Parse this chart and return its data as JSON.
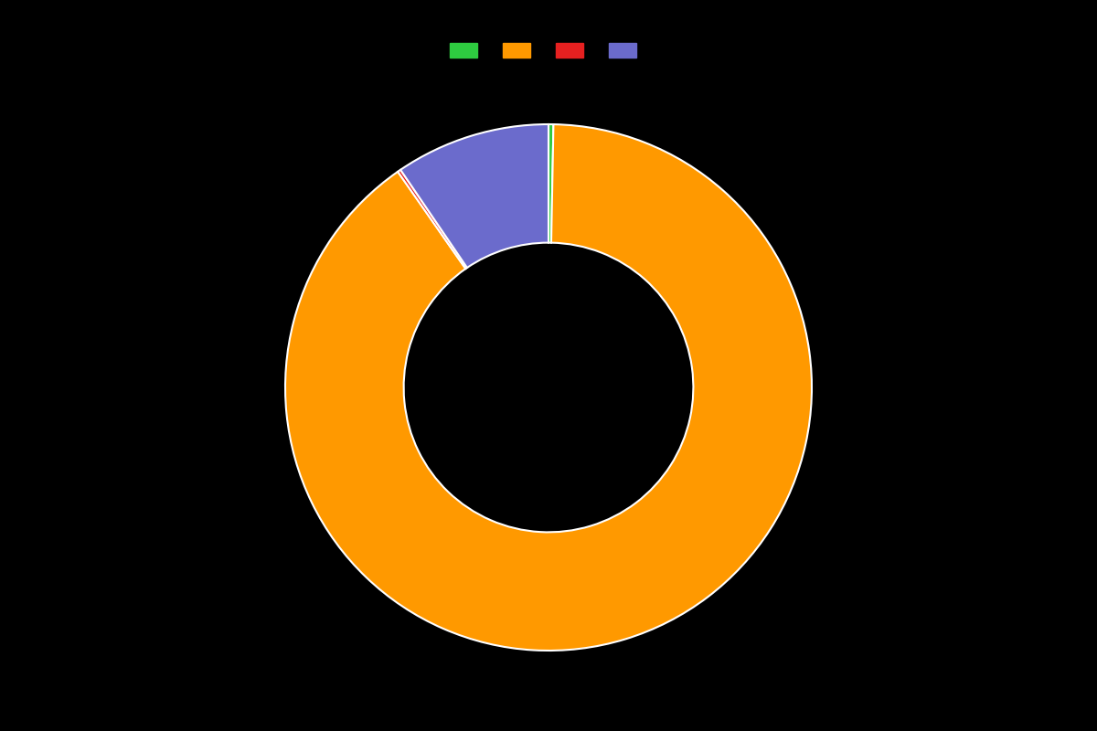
{
  "labels": [
    "",
    "",
    "",
    ""
  ],
  "values": [
    0.3,
    90.0,
    0.2,
    9.5
  ],
  "colors": [
    "#2ecc40",
    "#ff9900",
    "#e62020",
    "#6b6bcc"
  ],
  "background_color": "#000000",
  "wedge_edge_color": "white",
  "wedge_edge_width": 1.5,
  "donut_width": 0.45,
  "legend_colors": [
    "#2ecc40",
    "#ff9900",
    "#e62020",
    "#6b6bcc"
  ],
  "figsize": [
    12.0,
    8.0
  ],
  "dpi": 100
}
